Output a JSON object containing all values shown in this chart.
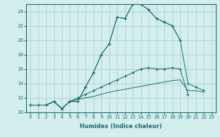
{
  "xlabel": "Humidex (Indice chaleur)",
  "background_color": "#d4eeee",
  "grid_color": "#aed4d4",
  "line_color": "#1a6b6b",
  "xlim": [
    -0.5,
    23.5
  ],
  "ylim": [
    10,
    25
  ],
  "xtick_labels": [
    "0",
    "1",
    "2",
    "3",
    "4",
    "5",
    "6",
    "7",
    "8",
    "9",
    "10",
    "11",
    "12",
    "13",
    "14",
    "15",
    "16",
    "17",
    "18",
    "19",
    "20",
    "21",
    "22",
    "23"
  ],
  "xtick_vals": [
    0,
    1,
    2,
    3,
    4,
    5,
    6,
    7,
    8,
    9,
    10,
    11,
    12,
    13,
    14,
    15,
    16,
    17,
    18,
    19,
    20,
    21,
    22,
    23
  ],
  "ytick_vals": [
    10,
    12,
    14,
    16,
    18,
    20,
    22,
    24
  ],
  "series": [
    {
      "x": [
        0,
        1,
        2,
        3,
        4,
        5,
        6,
        7,
        8,
        9,
        10,
        11,
        12,
        13,
        14,
        15,
        16,
        17,
        18,
        19
      ],
      "y": [
        11,
        11,
        11,
        11.5,
        10.5,
        11.5,
        11.5,
        13.5,
        15.5,
        18,
        19.5,
        23.2,
        23,
        25,
        25,
        24.2,
        23,
        22.5,
        22,
        20
      ],
      "marker": "+",
      "linestyle": "-"
    },
    {
      "x": [
        0,
        1,
        2,
        3,
        4,
        5,
        6,
        7,
        8,
        9,
        10,
        11,
        12,
        13,
        14,
        15,
        16,
        17,
        18,
        19,
        20,
        21,
        22
      ],
      "y": [
        11,
        11,
        11,
        11.5,
        10.5,
        11.5,
        11.5,
        13.5,
        15.5,
        18,
        19.5,
        23.2,
        23,
        25,
        25,
        24.2,
        23,
        22.5,
        22,
        20,
        14,
        13.5,
        13
      ],
      "marker": "+",
      "linestyle": "-"
    },
    {
      "x": [
        0,
        1,
        2,
        3,
        4,
        5,
        6,
        7,
        8,
        9,
        10,
        11,
        12,
        13,
        14,
        15,
        16,
        17,
        18,
        19,
        20
      ],
      "y": [
        11,
        11,
        11,
        11.5,
        10.5,
        11.5,
        12,
        12.5,
        13,
        13.5,
        14,
        14.5,
        15,
        15.5,
        16,
        16.2,
        16,
        16,
        16.2,
        16,
        12.5
      ],
      "marker": "+",
      "linestyle": "-"
    },
    {
      "x": [
        0,
        1,
        2,
        3,
        4,
        5,
        6,
        7,
        8,
        9,
        10,
        11,
        12,
        13,
        14,
        15,
        16,
        17,
        18,
        19,
        20,
        21,
        22
      ],
      "y": [
        11,
        11,
        11,
        11.5,
        10.5,
        11.5,
        11.8,
        12,
        12.2,
        12.5,
        12.8,
        13,
        13.2,
        13.4,
        13.6,
        13.8,
        14,
        14.2,
        14.4,
        14.5,
        13,
        13,
        12.8
      ],
      "marker": null,
      "linestyle": "-"
    }
  ]
}
